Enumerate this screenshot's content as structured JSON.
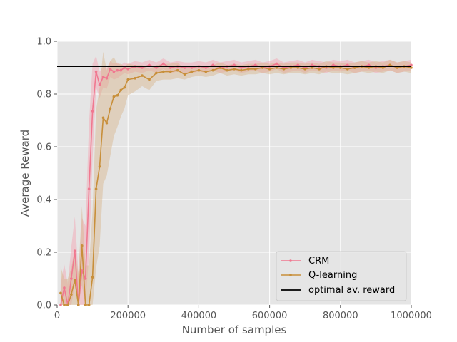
{
  "chart_data": {
    "type": "line",
    "xlabel": "Number of samples",
    "ylabel": "Average Reward",
    "xlim": [
      0,
      1000000
    ],
    "ylim": [
      0.0,
      1.0
    ],
    "grid": true,
    "legend_position": "bottom-right",
    "x_ticks": [
      0,
      200000,
      400000,
      600000,
      800000,
      1000000
    ],
    "x_tick_labels": [
      "0",
      "200000",
      "400000",
      "600000",
      "800000",
      "1000000"
    ],
    "y_ticks": [
      0.0,
      0.2,
      0.4,
      0.6,
      0.8,
      1.0
    ],
    "y_tick_labels": [
      "0.0",
      "0.2",
      "0.4",
      "0.6",
      "0.8",
      "1.0"
    ],
    "series": [
      {
        "name": "CRM",
        "color": "#f07890",
        "band_color": "#f5a0b0",
        "x": [
          10000,
          20000,
          30000,
          40000,
          50000,
          60000,
          70000,
          80000,
          90000,
          100000,
          110000,
          120000,
          130000,
          140000,
          150000,
          160000,
          170000,
          180000,
          190000,
          200000,
          220000,
          240000,
          260000,
          280000,
          300000,
          320000,
          340000,
          360000,
          380000,
          400000,
          420000,
          440000,
          460000,
          480000,
          500000,
          520000,
          540000,
          560000,
          580000,
          600000,
          620000,
          640000,
          660000,
          680000,
          700000,
          720000,
          740000,
          760000,
          780000,
          800000,
          820000,
          840000,
          860000,
          880000,
          900000,
          920000,
          940000,
          960000,
          980000,
          1000000
        ],
        "y": [
          0.0,
          0.065,
          0.0,
          0.1,
          0.205,
          0.0,
          0.13,
          0.1,
          0.44,
          0.735,
          0.885,
          0.835,
          0.865,
          0.86,
          0.895,
          0.885,
          0.89,
          0.89,
          0.9,
          0.895,
          0.905,
          0.9,
          0.91,
          0.9,
          0.915,
          0.9,
          0.905,
          0.9,
          0.9,
          0.905,
          0.9,
          0.91,
          0.9,
          0.905,
          0.91,
          0.9,
          0.905,
          0.91,
          0.9,
          0.905,
          0.915,
          0.9,
          0.905,
          0.91,
          0.9,
          0.91,
          0.905,
          0.9,
          0.91,
          0.905,
          0.91,
          0.9,
          0.905,
          0.91,
          0.9,
          0.905,
          0.91,
          0.9,
          0.905,
          0.91
        ],
        "spread": [
          0.08,
          0.09,
          0.08,
          0.12,
          0.13,
          0.12,
          0.2,
          0.2,
          0.25,
          0.18,
          0.06,
          0.05,
          0.04,
          0.04,
          0.03,
          0.03,
          0.03,
          0.02,
          0.02,
          0.02,
          0.02,
          0.02,
          0.02,
          0.02,
          0.02,
          0.02,
          0.02,
          0.02,
          0.02,
          0.02,
          0.02,
          0.02,
          0.02,
          0.02,
          0.02,
          0.02,
          0.02,
          0.02,
          0.02,
          0.02,
          0.02,
          0.02,
          0.02,
          0.02,
          0.02,
          0.02,
          0.02,
          0.02,
          0.02,
          0.02,
          0.02,
          0.02,
          0.02,
          0.02,
          0.02,
          0.02,
          0.02,
          0.02,
          0.02,
          0.02
        ]
      },
      {
        "name": "Q-learning",
        "color": "#c88f3a",
        "band_color": "#d8b48a",
        "x": [
          10000,
          20000,
          30000,
          40000,
          50000,
          60000,
          70000,
          80000,
          90000,
          100000,
          110000,
          120000,
          130000,
          140000,
          150000,
          160000,
          170000,
          180000,
          190000,
          200000,
          220000,
          240000,
          260000,
          280000,
          300000,
          320000,
          340000,
          360000,
          380000,
          400000,
          420000,
          440000,
          460000,
          480000,
          500000,
          520000,
          540000,
          560000,
          580000,
          600000,
          620000,
          640000,
          660000,
          680000,
          700000,
          720000,
          740000,
          760000,
          780000,
          800000,
          820000,
          840000,
          860000,
          880000,
          900000,
          920000,
          940000,
          960000,
          980000,
          1000000
        ],
        "y": [
          0.045,
          0.0,
          0.0,
          0.04,
          0.095,
          0.0,
          0.225,
          0.0,
          0.0,
          0.105,
          0.44,
          0.525,
          0.71,
          0.69,
          0.745,
          0.79,
          0.795,
          0.815,
          0.825,
          0.855,
          0.86,
          0.87,
          0.855,
          0.88,
          0.885,
          0.885,
          0.89,
          0.875,
          0.885,
          0.89,
          0.885,
          0.89,
          0.9,
          0.89,
          0.895,
          0.89,
          0.895,
          0.895,
          0.9,
          0.895,
          0.9,
          0.895,
          0.9,
          0.9,
          0.895,
          0.9,
          0.895,
          0.905,
          0.9,
          0.9,
          0.895,
          0.9,
          0.905,
          0.9,
          0.905,
          0.9,
          0.91,
          0.9,
          0.905,
          0.9
        ],
        "spread": [
          0.1,
          0.1,
          0.1,
          0.1,
          0.12,
          0.12,
          0.15,
          0.15,
          0.15,
          0.25,
          0.3,
          0.3,
          0.25,
          0.2,
          0.18,
          0.15,
          0.12,
          0.1,
          0.08,
          0.06,
          0.05,
          0.04,
          0.04,
          0.03,
          0.03,
          0.03,
          0.03,
          0.02,
          0.02,
          0.02,
          0.02,
          0.02,
          0.02,
          0.02,
          0.02,
          0.02,
          0.02,
          0.02,
          0.02,
          0.02,
          0.02,
          0.02,
          0.02,
          0.02,
          0.02,
          0.02,
          0.02,
          0.02,
          0.02,
          0.02,
          0.02,
          0.02,
          0.02,
          0.02,
          0.02,
          0.02,
          0.02,
          0.02,
          0.02,
          0.02
        ]
      }
    ],
    "reference_line": {
      "name": "optimal av. reward",
      "y": 0.905,
      "color": "#000000"
    }
  }
}
